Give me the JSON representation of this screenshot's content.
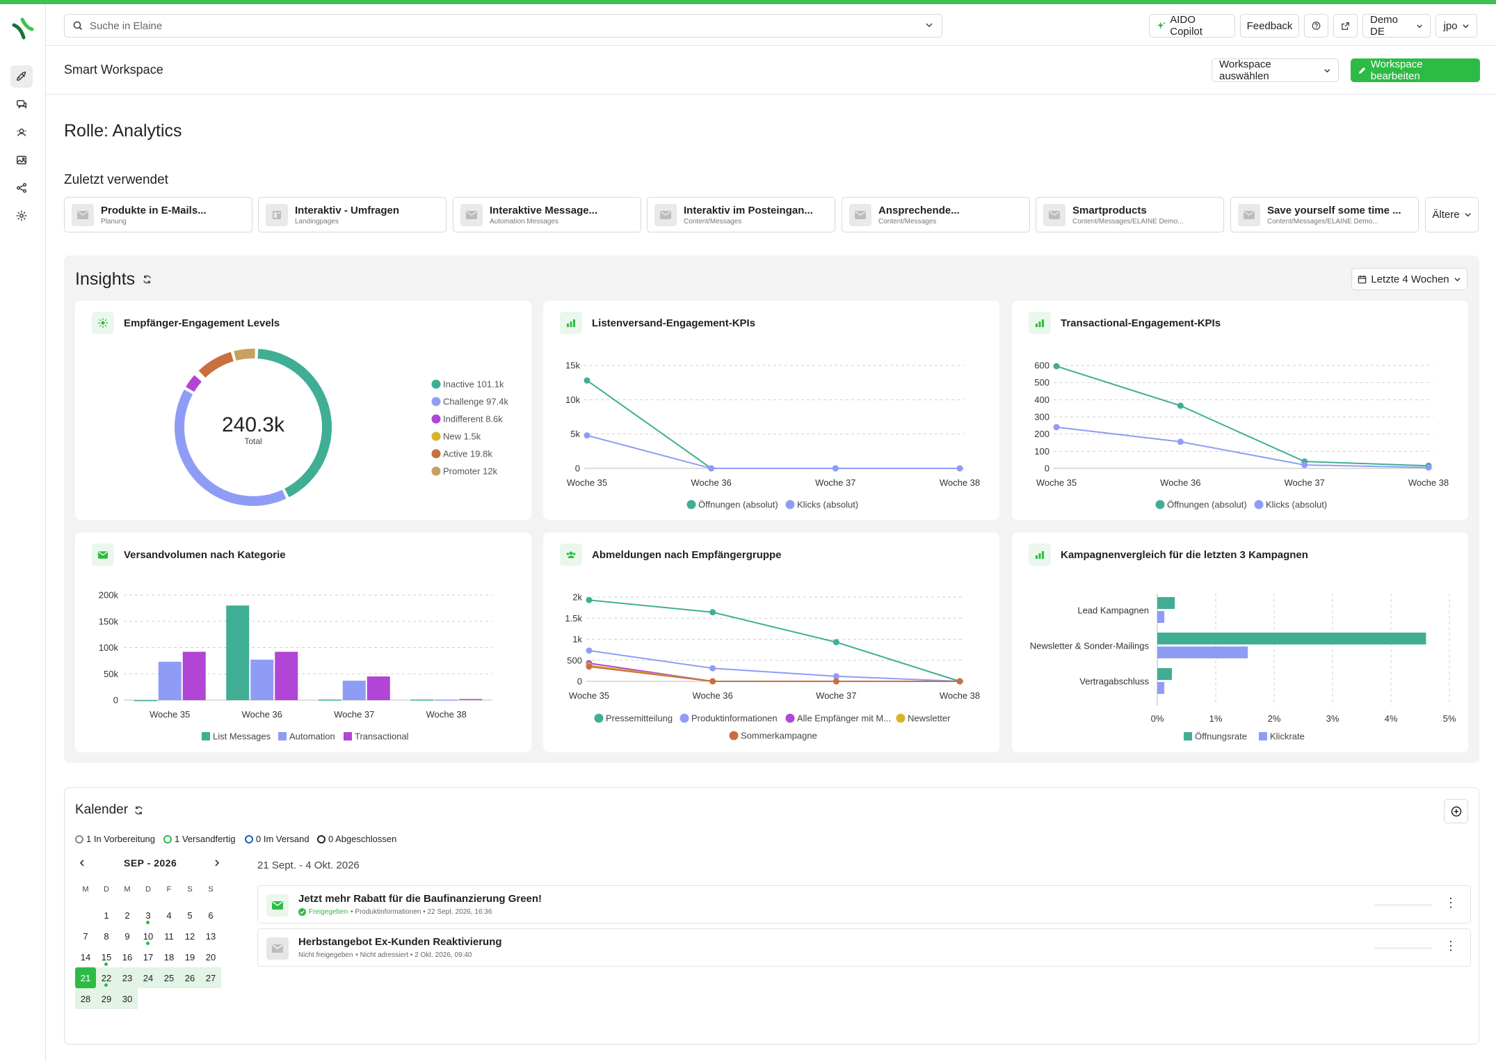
{
  "colors": {
    "accent": "#2dbb45",
    "teal": "#3fae95",
    "periwinkle": "#8f9cf6",
    "magenta": "#b145d6",
    "gold": "#d6b52a",
    "rust": "#c8703f",
    "tan": "#c6a160"
  },
  "header": {
    "search_placeholder": "Suche in Elaine",
    "copilot": "AIDO Copilot",
    "feedback": "Feedback",
    "help_icon": "help-icon",
    "external_icon": "external-link-icon",
    "env": "Demo DE",
    "user": "jpo"
  },
  "sidebar": {
    "icons": [
      "rocket-icon",
      "chat-icon",
      "contacts-icon",
      "image-icon",
      "share-icon",
      "gear-icon"
    ]
  },
  "subheader": {
    "title": "Smart Workspace",
    "select": "Workspace auswählen",
    "edit": "Workspace bearbeiten"
  },
  "role_title": "Rolle: Analytics",
  "recent": {
    "title": "Zuletzt verwendet",
    "items": [
      {
        "title": "Produkte in E-Mails...",
        "sub": "Planung"
      },
      {
        "title": "Interaktiv - Umfragen",
        "sub": "Landingpages"
      },
      {
        "title": "Interaktive Message...",
        "sub": "Automation Messages"
      },
      {
        "title": "Interaktiv im Posteingan...",
        "sub": "Content/Messages"
      },
      {
        "title": "Ansprechende...",
        "sub": "Content/Messages"
      },
      {
        "title": "Smartproducts",
        "sub": "Content/Messages/ELAINE Demo..."
      },
      {
        "title": "Save yourself some time ...",
        "sub": "Content/Messages/ELAINE Demo..."
      }
    ],
    "older": "Ältere"
  },
  "insights": {
    "title": "Insights",
    "range": "Letzte 4 Wochen"
  },
  "chart_data": [
    {
      "type": "pie",
      "title": "Empfänger-Engagement Levels",
      "center_value": "240.3k",
      "center_label": "Total",
      "labels": [
        "Inactive 101.1k",
        "Challenge 97.4k",
        "Indifferent 8.6k",
        "New 1.5k",
        "Active 19.8k",
        "Promoter 12k"
      ],
      "values": [
        101.1,
        97.4,
        8.6,
        1.5,
        19.8,
        12
      ]
    },
    {
      "type": "line",
      "title": "Listenversand-Engagement-KPIs",
      "categories": [
        "Woche 35",
        "Woche 36",
        "Woche 37",
        "Woche 38"
      ],
      "yticks": [
        "0",
        "5k",
        "10k",
        "15k"
      ],
      "ylim": [
        0,
        15000
      ],
      "series": [
        {
          "name": "Öffnungen (absolut)",
          "values": [
            12800,
            0,
            0,
            0
          ]
        },
        {
          "name": "Klicks (absolut)",
          "values": [
            4800,
            0,
            0,
            0
          ]
        }
      ]
    },
    {
      "type": "line",
      "title": "Transactional-Engagement-KPIs",
      "categories": [
        "Woche 35",
        "Woche 36",
        "Woche 37",
        "Woche 38"
      ],
      "yticks": [
        "0",
        "100",
        "200",
        "300",
        "400",
        "500",
        "600"
      ],
      "ylim": [
        0,
        600
      ],
      "series": [
        {
          "name": "Öffnungen (absolut)",
          "values": [
            595,
            365,
            40,
            15
          ]
        },
        {
          "name": "Klicks (absolut)",
          "values": [
            240,
            155,
            20,
            5
          ]
        }
      ]
    },
    {
      "type": "bar",
      "title": "Versandvolumen nach Kategorie",
      "categories": [
        "Woche 35",
        "Woche 36",
        "Woche 37",
        "Woche 38"
      ],
      "yticks": [
        "0",
        "50k",
        "100k",
        "150k",
        "200k"
      ],
      "ylim": [
        0,
        200000
      ],
      "series": [
        {
          "name": "List Messages",
          "values": [
            0,
            180000,
            1000,
            1000
          ]
        },
        {
          "name": "Automation",
          "values": [
            73000,
            77000,
            37000,
            1000
          ]
        },
        {
          "name": "Transactional",
          "values": [
            92000,
            92000,
            45000,
            2000
          ]
        }
      ]
    },
    {
      "type": "line",
      "title": "Abmeldungen nach Empfängergruppe",
      "categories": [
        "Woche 35",
        "Woche 36",
        "Woche 37",
        "Woche 38"
      ],
      "yticks": [
        "0",
        "500",
        "1k",
        "1.5k",
        "2k"
      ],
      "ylim": [
        0,
        2000
      ],
      "series": [
        {
          "name": "Pressemitteilung",
          "values": [
            1930,
            1640,
            930,
            0
          ]
        },
        {
          "name": "Produktinformationen",
          "values": [
            730,
            310,
            120,
            0
          ]
        },
        {
          "name": "Alle Empfänger mit M...",
          "values": [
            430,
            0,
            0,
            0
          ]
        },
        {
          "name": "Newsletter",
          "values": [
            380,
            0,
            0,
            0
          ]
        },
        {
          "name": "Sommerkampagne",
          "values": [
            350,
            0,
            0,
            0
          ]
        }
      ]
    },
    {
      "type": "bar",
      "orientation": "horizontal",
      "title": "Kampagnenvergleich für die letzten 3 Kampagnen",
      "categories": [
        "Lead Kampagnen",
        "Newsletter & Sonder-Mailings",
        "Vertragabschluss"
      ],
      "xticks": [
        "0%",
        "1%",
        "2%",
        "3%",
        "4%",
        "5%"
      ],
      "xlim": [
        0,
        5
      ],
      "series": [
        {
          "name": "Öffnungsrate",
          "values": [
            0.3,
            4.6,
            0.25
          ]
        },
        {
          "name": "Klickrate",
          "values": [
            0.12,
            1.55,
            0.12
          ]
        }
      ]
    }
  ],
  "calendar": {
    "title": "Kalender",
    "status": [
      "1 In Vorbereitung",
      "1 Versandfertig",
      "0 Im Versand",
      "0 Abgeschlossen"
    ],
    "month": "SEP - 2026",
    "weekdays": [
      "M",
      "D",
      "M",
      "D",
      "F",
      "S",
      "S"
    ],
    "range": "21 Sept. - 4 Okt. 2026",
    "events": [
      {
        "title": "Jetzt mehr Rabatt für die Baufinanzierung Green!",
        "status": "Freigegeben",
        "meta": " • Produktinformationen • 22 Sept. 2026, 16:36"
      },
      {
        "title": "Herbstangebot Ex-Kunden Reaktivierung",
        "status": "Nicht freigegeben",
        "meta": " • Nicht adressiert • 2 Okt. 2026, 09:40"
      }
    ]
  }
}
